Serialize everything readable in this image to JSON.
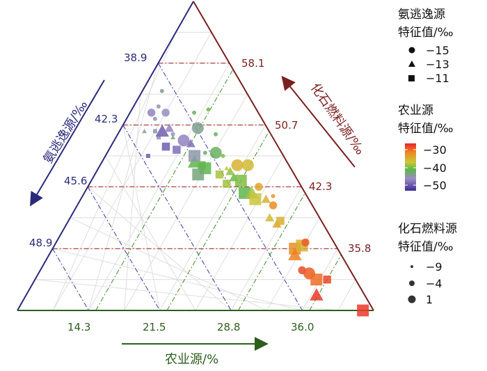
{
  "chart_data": {
    "type": "scatter",
    "subtype": "ternary",
    "axes": {
      "left": {
        "title": "氨逃逸源/‰",
        "ticks": [
          "38.9",
          "42.3",
          "45.6",
          "48.9"
        ],
        "color": "#2b2a7a"
      },
      "right": {
        "title": "化石燃料源/‰",
        "ticks": [
          "58.1",
          "50.7",
          "42.3",
          "35.8"
        ],
        "color": "#7a1f1f"
      },
      "bottom": {
        "title": "农业源/%",
        "ticks": [
          "14.3",
          "21.5",
          "28.8",
          "36.0"
        ],
        "color": "#2e5e1e"
      }
    },
    "legends": {
      "shape": {
        "title": [
          "氨逃逸源",
          "特征值/‰"
        ],
        "items": [
          {
            "shape": "circle",
            "label": "−15"
          },
          {
            "shape": "triangle",
            "label": "−13"
          },
          {
            "shape": "square",
            "label": "−11"
          }
        ]
      },
      "color": {
        "title": [
          "农业源",
          "特征值/‰"
        ],
        "ticks": [
          "−30",
          "−40",
          "−50"
        ],
        "range": [
          -55,
          -27
        ],
        "colors": [
          "#e8262a",
          "#ee8a22",
          "#c8c83a",
          "#5cb848",
          "#9c8cc8",
          "#3b2b92"
        ]
      },
      "size": {
        "title": [
          "化石燃料源",
          "特征值/‰"
        ],
        "items": [
          {
            "size": -9,
            "label": "−9"
          },
          {
            "size": -4,
            "label": "−4"
          },
          {
            "size": 1,
            "label": "1"
          }
        ]
      }
    },
    "points": [
      {
        "x": 0.37,
        "y": 0.5,
        "shape": "square",
        "agri": -52,
        "fossil": -9
      },
      {
        "x": 0.4,
        "y": 0.56,
        "shape": "square",
        "agri": -48,
        "fossil": -9
      },
      {
        "x": 0.44,
        "y": 0.56,
        "shape": "triangle",
        "agri": -46,
        "fossil": -9
      },
      {
        "x": 0.36,
        "y": 0.58,
        "shape": "triangle",
        "agri": -47,
        "fossil": -9
      },
      {
        "x": 0.39,
        "y": 0.58,
        "shape": "square",
        "agri": -48,
        "fossil": -9
      },
      {
        "x": 0.44,
        "y": 0.57,
        "shape": "circle",
        "agri": -49,
        "fossil": -9
      },
      {
        "x": 0.39,
        "y": 0.62,
        "shape": "circle",
        "agri": -48,
        "fossil": -9
      },
      {
        "x": 0.4,
        "y": 0.66,
        "shape": "circle",
        "agri": -48,
        "fossil": -9
      },
      {
        "x": 0.41,
        "y": 0.71,
        "shape": "circle",
        "agri": -47,
        "fossil": -9
      },
      {
        "x": 0.38,
        "y": 0.64,
        "shape": "circle",
        "agri": -50,
        "fossil": -4
      },
      {
        "x": 0.42,
        "y": 0.64,
        "shape": "circle",
        "agri": -49,
        "fossil": -4
      },
      {
        "x": 0.41,
        "y": 0.58,
        "shape": "triangle",
        "agri": -52,
        "fossil": 1
      },
      {
        "x": 0.43,
        "y": 0.59,
        "shape": "triangle",
        "agri": -50,
        "fossil": -4
      },
      {
        "x": 0.42,
        "y": 0.53,
        "shape": "square",
        "agri": -52,
        "fossil": -4
      },
      {
        "x": 0.45,
        "y": 0.52,
        "shape": "square",
        "agri": -51,
        "fossil": -4
      },
      {
        "x": 0.47,
        "y": 0.55,
        "shape": "circle",
        "agri": -50,
        "fossil": 1
      },
      {
        "x": 0.49,
        "y": 0.54,
        "shape": "triangle",
        "agri": -51,
        "fossil": -4
      },
      {
        "x": 0.5,
        "y": 0.48,
        "shape": "triangle",
        "agri": -44,
        "fossil": 1
      },
      {
        "x": 0.5,
        "y": 0.5,
        "shape": "square",
        "agri": -48,
        "fossil": 1
      },
      {
        "x": 0.53,
        "y": 0.51,
        "shape": "circle",
        "agri": -46,
        "fossil": -9
      },
      {
        "x": 0.51,
        "y": 0.59,
        "shape": "circle",
        "agri": -47,
        "fossil": 1
      },
      {
        "x": 0.5,
        "y": 0.64,
        "shape": "circle",
        "agri": -45,
        "fossil": -9
      },
      {
        "x": 0.54,
        "y": 0.65,
        "shape": "circle",
        "agri": -43,
        "fossil": -9
      },
      {
        "x": 0.52,
        "y": 0.47,
        "shape": "square",
        "agri": -43,
        "fossil": -4
      },
      {
        "x": 0.53,
        "y": 0.46,
        "shape": "square",
        "agri": -44,
        "fossil": 1
      },
      {
        "x": 0.51,
        "y": 0.44,
        "shape": "square",
        "agri": -46,
        "fossil": 1
      },
      {
        "x": 0.56,
        "y": 0.51,
        "shape": "circle",
        "agri": -45,
        "fossil": 1
      },
      {
        "x": 0.58,
        "y": 0.5,
        "shape": "circle",
        "agri": -42,
        "fossil": -9
      },
      {
        "x": 0.56,
        "y": 0.57,
        "shape": "circle",
        "agri": -45,
        "fossil": -9
      },
      {
        "x": 0.59,
        "y": 0.46,
        "shape": "triangle",
        "agri": -39,
        "fossil": -9
      },
      {
        "x": 0.57,
        "y": 0.44,
        "shape": "square",
        "agri": -40,
        "fossil": -4
      },
      {
        "x": 0.6,
        "y": 0.45,
        "shape": "triangle",
        "agri": -41,
        "fossil": -4
      },
      {
        "x": 0.59,
        "y": 0.41,
        "shape": "square",
        "agri": -40,
        "fossil": -4
      },
      {
        "x": 0.61,
        "y": 0.43,
        "shape": "triangle",
        "agri": -43,
        "fossil": -4
      },
      {
        "x": 0.63,
        "y": 0.42,
        "shape": "square",
        "agri": -42,
        "fossil": 1
      },
      {
        "x": 0.64,
        "y": 0.38,
        "shape": "square",
        "agri": -44,
        "fossil": 1
      },
      {
        "x": 0.62,
        "y": 0.47,
        "shape": "circle",
        "agri": -36,
        "fossil": 1
      },
      {
        "x": 0.65,
        "y": 0.47,
        "shape": "circle",
        "agri": -37,
        "fossil": 1
      },
      {
        "x": 0.66,
        "y": 0.38,
        "shape": "triangle",
        "agri": -40,
        "fossil": 1
      },
      {
        "x": 0.67,
        "y": 0.36,
        "shape": "square",
        "agri": -38,
        "fossil": 1
      },
      {
        "x": 0.68,
        "y": 0.4,
        "shape": "circle",
        "agri": -35,
        "fossil": -4
      },
      {
        "x": 0.7,
        "y": 0.36,
        "shape": "triangle",
        "agri": -36,
        "fossil": -4
      },
      {
        "x": 0.72,
        "y": 0.34,
        "shape": "circle",
        "agri": -33,
        "fossil": -4
      },
      {
        "x": 0.72,
        "y": 0.37,
        "shape": "circle",
        "agri": -34,
        "fossil": -9
      },
      {
        "x": 0.71,
        "y": 0.3,
        "shape": "triangle",
        "agri": -37,
        "fossil": -4
      },
      {
        "x": 0.73,
        "y": 0.28,
        "shape": "triangle",
        "agri": -35,
        "fossil": -4
      },
      {
        "x": 0.74,
        "y": 0.29,
        "shape": "square",
        "agri": -36,
        "fossil": -4
      },
      {
        "x": 0.78,
        "y": 0.2,
        "shape": "square",
        "agri": -33,
        "fossil": 1
      },
      {
        "x": 0.8,
        "y": 0.21,
        "shape": "square",
        "agri": -36,
        "fossil": 1
      },
      {
        "x": 0.81,
        "y": 0.22,
        "shape": "circle",
        "agri": -30,
        "fossil": -4
      },
      {
        "x": 0.78,
        "y": 0.18,
        "shape": "triangle",
        "agri": -32,
        "fossil": 1
      },
      {
        "x": 0.8,
        "y": 0.13,
        "shape": "circle",
        "agri": -29,
        "fossil": -4
      },
      {
        "x": 0.82,
        "y": 0.12,
        "shape": "circle",
        "agri": -30,
        "fossil": 1
      },
      {
        "x": 0.84,
        "y": 0.1,
        "shape": "square",
        "agri": -31,
        "fossil": 1
      },
      {
        "x": 0.87,
        "y": 0.1,
        "shape": "square",
        "agri": -29,
        "fossil": -4
      },
      {
        "x": 0.84,
        "y": 0.05,
        "shape": "triangle",
        "agri": -28,
        "fossil": 1
      },
      {
        "x": 0.97,
        "y": 0.0,
        "shape": "square",
        "agri": -28,
        "fossil": 1
      }
    ]
  }
}
